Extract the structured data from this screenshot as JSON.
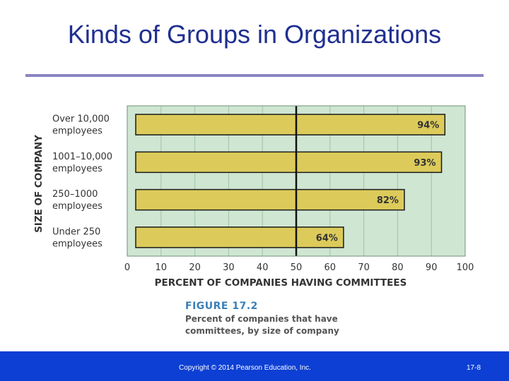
{
  "slide": {
    "title": "Kinds of Groups in Organizations",
    "copyright": "Copyright © 2014 Pearson Education, Inc.",
    "page_number": "17-8"
  },
  "figure": {
    "number": "FIGURE 17.2",
    "caption": "Percent of companies that have committees, by size of company"
  },
  "colors": {
    "title": "#1f2f8f",
    "rule": "#8b84c2",
    "plot_background": "#cfe6d2",
    "bar_fill": "#dccb5a",
    "bar_stroke": "#1a1a1a",
    "footer": "#0d3fd4",
    "figure_number": "#3a7fb8"
  },
  "chart_data": {
    "type": "bar",
    "orientation": "horizontal",
    "categories": [
      [
        "Over 10,000",
        "employees"
      ],
      [
        "1001–10,000",
        "employees"
      ],
      [
        "250–1000",
        "employees"
      ],
      [
        "Under 250",
        "employees"
      ]
    ],
    "values": [
      94,
      93,
      82,
      64
    ],
    "value_labels": [
      "94%",
      "93%",
      "82%",
      "64%"
    ],
    "xlabel": "PERCENT OF COMPANIES HAVING COMMITTEES",
    "ylabel": "SIZE OF COMPANY",
    "xlim": [
      0,
      100
    ],
    "xticks": [
      0,
      10,
      20,
      30,
      40,
      50,
      60,
      70,
      80,
      90,
      100
    ],
    "reference_line": 50,
    "grid": true
  }
}
